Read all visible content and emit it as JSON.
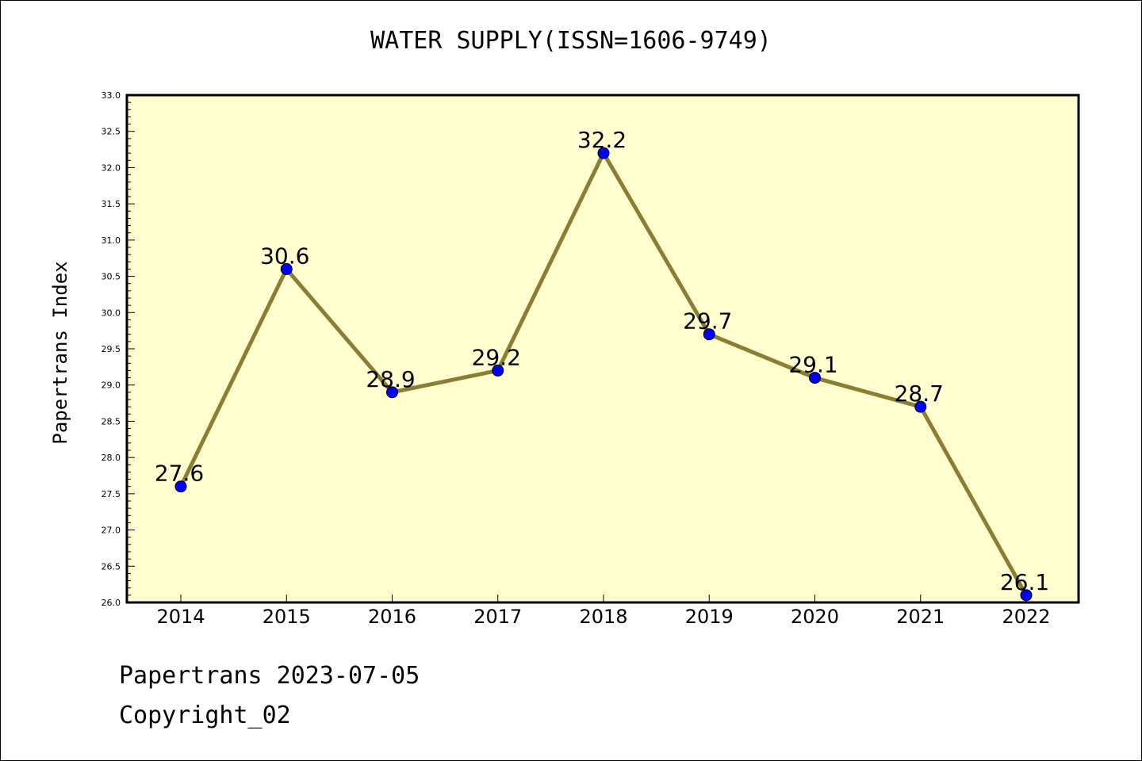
{
  "chart_data": {
    "type": "line",
    "title": "WATER SUPPLY(ISSN=1606-9749)",
    "xlabel": "",
    "ylabel": "Papertrans Index",
    "categories": [
      "2014",
      "2015",
      "2016",
      "2017",
      "2018",
      "2019",
      "2020",
      "2021",
      "2022"
    ],
    "values": [
      27.6,
      30.6,
      28.9,
      29.2,
      32.2,
      29.7,
      29.1,
      28.7,
      26.1
    ],
    "data_labels": [
      "27.6",
      "30.6",
      "28.9",
      "29.2",
      "32.2",
      "29.7",
      "29.1",
      "28.7",
      "26.1"
    ],
    "ylim": [
      26.0,
      33.0
    ],
    "y_ticks": [
      "26.0",
      "26.5",
      "27.0",
      "27.5",
      "28.0",
      "28.5",
      "29.0",
      "29.5",
      "30.0",
      "30.5",
      "31.0",
      "31.5",
      "32.0",
      "32.5",
      "33.0"
    ],
    "grid": false,
    "colors": {
      "line": "#8B7D32",
      "marker": "#0000FF",
      "plot_background": "#FFFFD0"
    }
  },
  "footer": {
    "line1": "Papertrans 2023-07-05",
    "line2": "Copyright_02"
  }
}
